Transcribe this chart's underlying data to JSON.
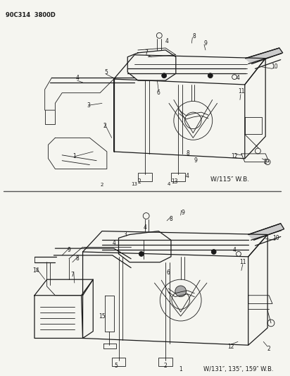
{
  "bg": "#f5f5f0",
  "lc": "#1a1a1a",
  "header": "90C314 3800D",
  "wb1": "W/115″ W.B.",
  "wb2": "W/131″, 135″, 159″ W.B.",
  "figsize": [
    4.12,
    5.33
  ],
  "dpi": 100
}
